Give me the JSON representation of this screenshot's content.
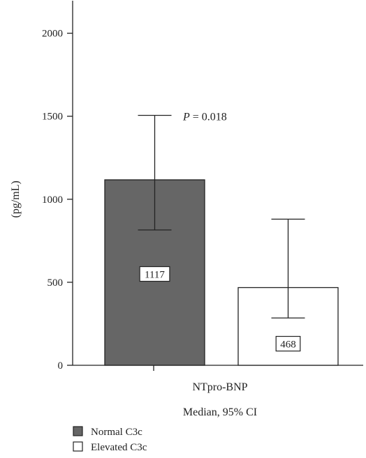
{
  "chart_data": {
    "type": "bar",
    "title": "",
    "ylabel": "(pg/mL)",
    "xlabel": "NTpro-BNP",
    "xlabel_sub": "Median, 95% CI",
    "ylim": [
      0,
      2200
    ],
    "yticks": [
      0,
      500,
      1000,
      1500,
      2000
    ],
    "ytick_labels": [
      "0",
      "500",
      "1000",
      "1500",
      "2000"
    ],
    "categories": [
      "NTpro-BNP"
    ],
    "series": [
      {
        "name": "Normal C3c",
        "values": [
          1117
        ],
        "ci_low": [
          815
        ],
        "ci_high": [
          1505
        ],
        "color": "#666666"
      },
      {
        "name": "Elevated C3c",
        "values": [
          468
        ],
        "ci_low": [
          285
        ],
        "ci_high": [
          880
        ],
        "color": "#ffffff"
      }
    ],
    "data_labels": [
      "1117",
      "468"
    ],
    "annotation": {
      "prefix": "P",
      "text": " = 0.018"
    },
    "legend": {
      "placement": "bottom-left"
    },
    "grid": false
  }
}
